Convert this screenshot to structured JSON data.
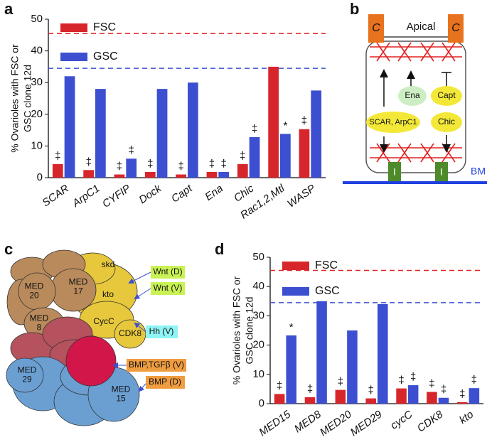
{
  "panel_labels": [
    "a",
    "b",
    "c",
    "d"
  ],
  "chart_data": [
    {
      "type": "bar",
      "ylabel": [
        "% Ovarioles with FSC or",
        "GSC clone 12d"
      ],
      "categories": [
        "SCAR",
        "ArpC1",
        "CYFIP",
        "Dock",
        "Capt",
        "Ena",
        "Chic",
        "Rac1,2,Mtl",
        "WASP"
      ],
      "series": [
        {
          "name": "FSC",
          "color": "#d7262b",
          "values": [
            4.3,
            2.4,
            1,
            1.8,
            1,
            1.8,
            4.3,
            35,
            15.3
          ],
          "markers": [
            "‡",
            "‡",
            "‡",
            "‡",
            "‡",
            "‡",
            "‡",
            null,
            "‡"
          ]
        },
        {
          "name": "GSC",
          "color": "#3d4fd1",
          "values": [
            32,
            28,
            6,
            28,
            30,
            1.8,
            12.8,
            13.8,
            27.5
          ],
          "markers": [
            null,
            null,
            "‡",
            null,
            null,
            "‡",
            "‡",
            "*",
            null
          ]
        }
      ],
      "reference_lines": [
        {
          "value": 45.5,
          "color": "#e02020"
        },
        {
          "value": 34.5,
          "color": "#3d4fd1"
        }
      ],
      "ylim": [
        0,
        50
      ],
      "yticks": [
        0,
        10,
        20,
        30,
        40,
        50
      ],
      "legend": "top-left"
    },
    {
      "type": "bar",
      "ylabel": [
        "% Ovarioles with FSC or",
        "GSC clone 12d"
      ],
      "categories": [
        "MED15",
        "MED8",
        "MED20",
        "MED29",
        "cycC",
        "CDK8",
        "kto"
      ],
      "series": [
        {
          "name": "FSC",
          "color": "#d7262b",
          "values": [
            3.3,
            2.2,
            4.7,
            1.8,
            5.2,
            4,
            0.5
          ],
          "markers": [
            "‡",
            "‡",
            "‡",
            "‡",
            "‡",
            "‡",
            "‡"
          ]
        },
        {
          "name": "GSC",
          "color": "#3d4fd1",
          "values": [
            23.3,
            35,
            25,
            34,
            6.3,
            2,
            5.3
          ],
          "markers": [
            "*",
            null,
            null,
            null,
            "‡",
            "‡",
            "‡"
          ]
        }
      ],
      "reference_lines": [
        {
          "value": 45.5,
          "color": "#e02020"
        },
        {
          "value": 34.5,
          "color": "#3d4fd1"
        }
      ],
      "ylim": [
        0,
        50
      ],
      "yticks": [
        0,
        10,
        20,
        30,
        40,
        50
      ],
      "legend": "top-left"
    }
  ],
  "diagram_b": {
    "apical": "Apical",
    "cadherin": [
      "C",
      "C"
    ],
    "ena": "Ena",
    "capt": "Capt",
    "scar": "SCAR, ArpC1",
    "chic": "Chic",
    "integrin": [
      "I",
      "I"
    ],
    "bm": "BM"
  },
  "diagram_c": {
    "subunits": [
      [
        "MED",
        "20"
      ],
      [
        "MED",
        "17"
      ],
      [
        "MED",
        "8"
      ],
      [
        "skd"
      ],
      [
        "kto"
      ],
      [
        "CycC"
      ],
      [
        "CDK8"
      ],
      [
        "MED",
        "29"
      ],
      [
        "MED",
        "15"
      ]
    ],
    "signals": [
      "Wnt (D)",
      "Wnt (V)",
      "Hh (V)",
      "BMP,TGFβ (V)",
      "BMP (D)"
    ]
  }
}
